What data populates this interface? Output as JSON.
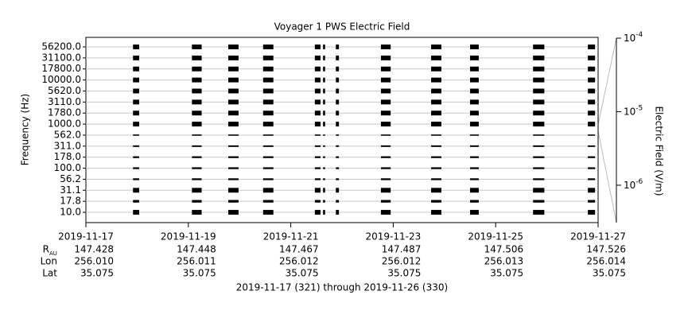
{
  "chart_data": {
    "type": "strip",
    "title": "Voyager 1 PWS Electric Field",
    "ylabel": "Frequency (Hz)",
    "y2label": "Electric Field (V/m)",
    "channels": [
      {
        "name": "56200.0",
        "value": 3.7e-06
      },
      {
        "name": "31100.0",
        "value": 3.7e-06
      },
      {
        "name": "17800.0",
        "value": 3.7e-06
      },
      {
        "name": "10000.0",
        "value": 3.7e-06
      },
      {
        "name": "5620.0",
        "value": 3.7e-06
      },
      {
        "name": "3110.0",
        "value": 3.7e-06
      },
      {
        "name": "1780.0",
        "value": 3.7e-06
      },
      {
        "name": "1000.0",
        "value": 3.7e-06
      },
      {
        "name": "562.0",
        "value": 6e-07
      },
      {
        "name": "311.0",
        "value": 7e-07
      },
      {
        "name": "178.0",
        "value": 8e-07
      },
      {
        "name": "100.0",
        "value": 8e-07
      },
      {
        "name": "56.2",
        "value": 8e-07
      },
      {
        "name": "31.1",
        "value": 3.7e-06
      },
      {
        "name": "17.8",
        "value": 1.2e-06
      },
      {
        "name": "10.0",
        "value": 3.7e-06
      }
    ],
    "bursts": [
      [
        321.92,
        322.04
      ],
      [
        323.07,
        323.26
      ],
      [
        323.78,
        323.98
      ],
      [
        324.46,
        324.66
      ],
      [
        325.47,
        325.58
      ],
      [
        325.63,
        325.67
      ],
      [
        325.88,
        325.94
      ],
      [
        326.76,
        326.95
      ],
      [
        327.74,
        327.94
      ],
      [
        328.5,
        328.67
      ],
      [
        329.73,
        329.95
      ],
      [
        330.8,
        330.94
      ]
    ],
    "color": "#000000",
    "xlim": [
      321,
      331
    ],
    "xticks": [
      {
        "value": 321,
        "label": "2019-11-17"
      },
      {
        "value": 323,
        "label": "2019-11-19"
      },
      {
        "value": 325,
        "label": "2019-11-21"
      },
      {
        "value": 327,
        "label": "2019-11-23"
      },
      {
        "value": 329,
        "label": "2019-11-25"
      },
      {
        "value": 331,
        "label": "2019-11-27"
      }
    ],
    "y2lim": [
      3.1e-07,
      0.0001
    ],
    "y2scale": "log",
    "y2ticks": [
      {
        "value": 0.0001,
        "label": "10^-4"
      },
      {
        "value": 1e-05,
        "label": "10^-5"
      },
      {
        "value": 1e-06,
        "label": "10^-6"
      }
    ],
    "ephemeris": [
      {
        "label": "R",
        "sub": "AU",
        "values": [
          "147.428",
          "147.448",
          "147.467",
          "147.487",
          "147.506",
          "147.526"
        ]
      },
      {
        "label": "Lon",
        "values": [
          "256.010",
          "256.011",
          "256.012",
          "256.012",
          "256.013",
          "256.014"
        ]
      },
      {
        "label": "Lat",
        "values": [
          "35.075",
          "35.075",
          "35.075",
          "35.075",
          "35.075",
          "35.075"
        ]
      }
    ],
    "footer": "2019-11-17 (321) through 2019-11-26 (330)"
  }
}
